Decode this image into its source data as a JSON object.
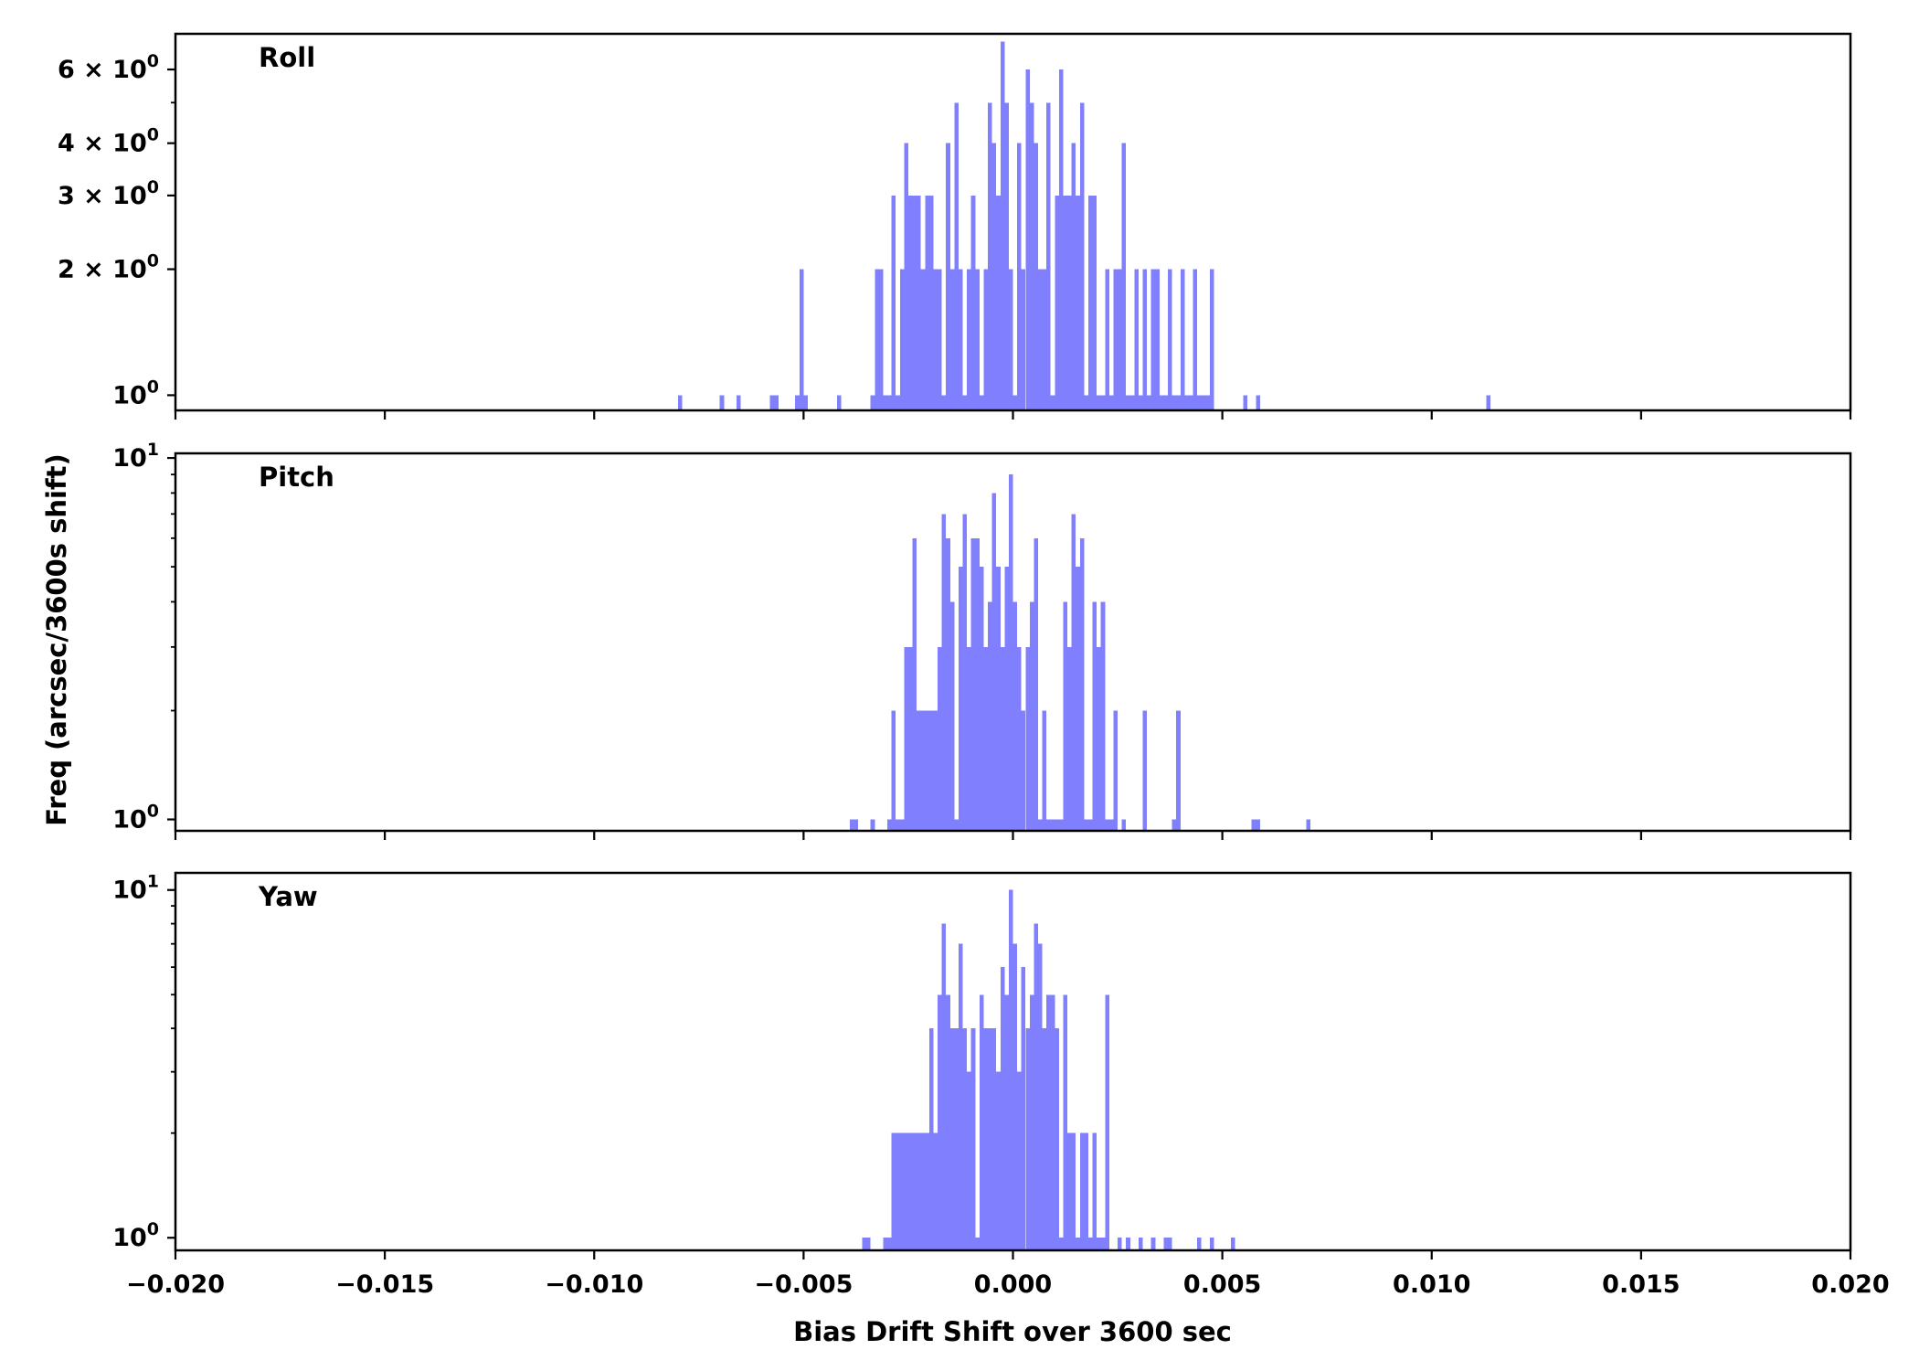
{
  "chart_data": [
    {
      "type": "bar",
      "panel_label": "Roll",
      "yscale": "log",
      "ylim": [
        0.92,
        7.3
      ],
      "y_ticks": [
        {
          "value": 1,
          "label": "10",
          "exp": "0"
        },
        {
          "value": 2,
          "label": "2 × 10",
          "exp": "0"
        },
        {
          "value": 3,
          "label": "3 × 10",
          "exp": "0"
        },
        {
          "value": 4,
          "label": "4 × 10",
          "exp": "0"
        },
        {
          "value": 6,
          "label": "6 × 10",
          "exp": "0"
        }
      ],
      "y_minor": [
        5
      ],
      "x_tick_labels_shown": false,
      "bars": [
        [
          -0.008,
          1
        ],
        [
          -0.007,
          1
        ],
        [
          -0.0066,
          1
        ],
        [
          -0.0058,
          1
        ],
        [
          -0.0057,
          1
        ],
        [
          -0.0052,
          1
        ],
        [
          -0.0051,
          2
        ],
        [
          -0.005,
          1
        ],
        [
          -0.0042,
          1
        ],
        [
          -0.0034,
          1
        ],
        [
          -0.0033,
          2
        ],
        [
          -0.0032,
          2
        ],
        [
          -0.0031,
          1
        ],
        [
          -0.003,
          1
        ],
        [
          -0.0029,
          3
        ],
        [
          -0.0028,
          1
        ],
        [
          -0.0027,
          2
        ],
        [
          -0.0026,
          4
        ],
        [
          -0.0025,
          3
        ],
        [
          -0.0024,
          3
        ],
        [
          -0.0023,
          3
        ],
        [
          -0.0022,
          2
        ],
        [
          -0.0021,
          3
        ],
        [
          -0.002,
          3
        ],
        [
          -0.0019,
          2
        ],
        [
          -0.0018,
          2
        ],
        [
          -0.0017,
          1
        ],
        [
          -0.0016,
          4
        ],
        [
          -0.0015,
          2
        ],
        [
          -0.0014,
          5
        ],
        [
          -0.0013,
          2
        ],
        [
          -0.0012,
          1
        ],
        [
          -0.0011,
          2
        ],
        [
          -0.001,
          3
        ],
        [
          -0.0009,
          2
        ],
        [
          -0.0008,
          1
        ],
        [
          -0.0007,
          2
        ],
        [
          -0.0006,
          5
        ],
        [
          -0.0005,
          4
        ],
        [
          -0.0004,
          3
        ],
        [
          -0.0003,
          7
        ],
        [
          -0.0002,
          5
        ],
        [
          -0.0001,
          2
        ],
        [
          0.0,
          1
        ],
        [
          0.0001,
          4
        ],
        [
          0.0002,
          2
        ],
        [
          0.0003,
          6
        ],
        [
          0.0004,
          5
        ],
        [
          0.0005,
          4
        ],
        [
          0.0006,
          2
        ],
        [
          0.0007,
          2
        ],
        [
          0.0008,
          5
        ],
        [
          0.0009,
          1
        ],
        [
          0.001,
          3
        ],
        [
          0.0011,
          6
        ],
        [
          0.0012,
          3
        ],
        [
          0.0013,
          3
        ],
        [
          0.0014,
          4
        ],
        [
          0.0015,
          3
        ],
        [
          0.0016,
          5
        ],
        [
          0.0017,
          1
        ],
        [
          0.0018,
          3
        ],
        [
          0.0019,
          3
        ],
        [
          0.002,
          1
        ],
        [
          0.0021,
          1
        ],
        [
          0.0022,
          2
        ],
        [
          0.0023,
          1
        ],
        [
          0.0024,
          2
        ],
        [
          0.0025,
          2
        ],
        [
          0.0026,
          4
        ],
        [
          0.0027,
          1
        ],
        [
          0.0028,
          1
        ],
        [
          0.0029,
          2
        ],
        [
          0.003,
          1
        ],
        [
          0.0031,
          2
        ],
        [
          0.0032,
          1
        ],
        [
          0.0033,
          2
        ],
        [
          0.0034,
          2
        ],
        [
          0.0035,
          1
        ],
        [
          0.0036,
          1
        ],
        [
          0.0037,
          2
        ],
        [
          0.0038,
          1
        ],
        [
          0.0039,
          1
        ],
        [
          0.004,
          2
        ],
        [
          0.0041,
          1
        ],
        [
          0.0042,
          1
        ],
        [
          0.0043,
          2
        ],
        [
          0.0044,
          1
        ],
        [
          0.0045,
          1
        ],
        [
          0.0046,
          1
        ],
        [
          0.0047,
          2
        ],
        [
          0.0055,
          1
        ],
        [
          0.0058,
          1
        ],
        [
          0.0113,
          1
        ]
      ]
    },
    {
      "type": "bar",
      "panel_label": "Pitch",
      "yscale": "log",
      "ylim": [
        0.93,
        10.3
      ],
      "y_ticks": [
        {
          "value": 1,
          "label": "10",
          "exp": "0"
        },
        {
          "value": 10,
          "label": "10",
          "exp": "1"
        }
      ],
      "y_minor": [
        2,
        3,
        4,
        5,
        6,
        7,
        8,
        9
      ],
      "x_tick_labels_shown": false,
      "bars": [
        [
          -0.0039,
          1
        ],
        [
          -0.0038,
          1
        ],
        [
          -0.0034,
          1
        ],
        [
          -0.003,
          1
        ],
        [
          -0.0029,
          2
        ],
        [
          -0.0028,
          1
        ],
        [
          -0.0027,
          1
        ],
        [
          -0.0026,
          3
        ],
        [
          -0.0025,
          3
        ],
        [
          -0.0024,
          6
        ],
        [
          -0.0023,
          2
        ],
        [
          -0.0022,
          2
        ],
        [
          -0.0021,
          2
        ],
        [
          -0.002,
          2
        ],
        [
          -0.0019,
          2
        ],
        [
          -0.0018,
          3
        ],
        [
          -0.0017,
          7
        ],
        [
          -0.0016,
          6
        ],
        [
          -0.0015,
          4
        ],
        [
          -0.0014,
          1
        ],
        [
          -0.0013,
          5
        ],
        [
          -0.0012,
          7
        ],
        [
          -0.0011,
          3
        ],
        [
          -0.001,
          6
        ],
        [
          -0.0009,
          6
        ],
        [
          -0.0008,
          5
        ],
        [
          -0.0007,
          3
        ],
        [
          -0.0006,
          4
        ],
        [
          -0.0005,
          8
        ],
        [
          -0.0004,
          5
        ],
        [
          -0.0003,
          3
        ],
        [
          -0.0002,
          5
        ],
        [
          -0.0001,
          9
        ],
        [
          0.0,
          4
        ],
        [
          0.0001,
          3
        ],
        [
          0.0002,
          2
        ],
        [
          0.0003,
          3
        ],
        [
          0.0004,
          4
        ],
        [
          0.0005,
          6
        ],
        [
          0.0006,
          1
        ],
        [
          0.0007,
          2
        ],
        [
          0.0008,
          1
        ],
        [
          0.0009,
          1
        ],
        [
          0.001,
          1
        ],
        [
          0.0011,
          1
        ],
        [
          0.0012,
          4
        ],
        [
          0.0013,
          3
        ],
        [
          0.0014,
          7
        ],
        [
          0.0015,
          5
        ],
        [
          0.0016,
          6
        ],
        [
          0.0017,
          1
        ],
        [
          0.0018,
          1
        ],
        [
          0.0019,
          4
        ],
        [
          0.002,
          3
        ],
        [
          0.0021,
          4
        ],
        [
          0.0022,
          1
        ],
        [
          0.0023,
          1
        ],
        [
          0.0024,
          2
        ],
        [
          0.0026,
          1
        ],
        [
          0.0031,
          2
        ],
        [
          0.0038,
          1
        ],
        [
          0.0039,
          2
        ],
        [
          0.0057,
          1
        ],
        [
          0.0058,
          1
        ],
        [
          0.007,
          1
        ]
      ]
    },
    {
      "type": "bar",
      "panel_label": "Yaw",
      "yscale": "log",
      "ylim": [
        0.92,
        11.2
      ],
      "y_ticks": [
        {
          "value": 1,
          "label": "10",
          "exp": "0"
        },
        {
          "value": 10,
          "label": "10",
          "exp": "1"
        }
      ],
      "y_minor": [
        2,
        3,
        4,
        5,
        6,
        7,
        8,
        9
      ],
      "x_tick_labels_shown": true,
      "bars": [
        [
          -0.0036,
          1
        ],
        [
          -0.0035,
          1
        ],
        [
          -0.0031,
          1
        ],
        [
          -0.003,
          1
        ],
        [
          -0.0029,
          2
        ],
        [
          -0.0028,
          2
        ],
        [
          -0.0027,
          2
        ],
        [
          -0.0026,
          2
        ],
        [
          -0.0025,
          2
        ],
        [
          -0.0024,
          2
        ],
        [
          -0.0023,
          2
        ],
        [
          -0.0022,
          2
        ],
        [
          -0.0021,
          2
        ],
        [
          -0.002,
          4
        ],
        [
          -0.0019,
          2
        ],
        [
          -0.0018,
          5
        ],
        [
          -0.0017,
          8
        ],
        [
          -0.0016,
          5
        ],
        [
          -0.0015,
          4
        ],
        [
          -0.0014,
          4
        ],
        [
          -0.0013,
          7
        ],
        [
          -0.0012,
          4
        ],
        [
          -0.0011,
          3
        ],
        [
          -0.001,
          4
        ],
        [
          -0.0009,
          1
        ],
        [
          -0.0008,
          5
        ],
        [
          -0.0007,
          4
        ],
        [
          -0.0006,
          4
        ],
        [
          -0.0005,
          4
        ],
        [
          -0.0004,
          3
        ],
        [
          -0.0003,
          6
        ],
        [
          -0.0002,
          5
        ],
        [
          -0.0001,
          10
        ],
        [
          0.0,
          7
        ],
        [
          0.0001,
          3
        ],
        [
          0.0002,
          6
        ],
        [
          0.0003,
          4
        ],
        [
          0.0004,
          5
        ],
        [
          0.0005,
          8
        ],
        [
          0.0006,
          7
        ],
        [
          0.0007,
          4
        ],
        [
          0.0008,
          5
        ],
        [
          0.0009,
          5
        ],
        [
          0.001,
          4
        ],
        [
          0.0011,
          1
        ],
        [
          0.0012,
          5
        ],
        [
          0.0013,
          2
        ],
        [
          0.0014,
          2
        ],
        [
          0.0015,
          1
        ],
        [
          0.0016,
          2
        ],
        [
          0.0017,
          2
        ],
        [
          0.0018,
          1
        ],
        [
          0.0019,
          2
        ],
        [
          0.002,
          1
        ],
        [
          0.0021,
          1
        ],
        [
          0.0022,
          5
        ],
        [
          0.0025,
          1
        ],
        [
          0.0027,
          1
        ],
        [
          0.003,
          1
        ],
        [
          0.0033,
          1
        ],
        [
          0.0036,
          1
        ],
        [
          0.0037,
          1
        ],
        [
          0.0044,
          1
        ],
        [
          0.0047,
          1
        ],
        [
          0.0052,
          1
        ]
      ]
    }
  ],
  "shared": {
    "xlim": [
      -0.02,
      0.02
    ],
    "x_ticks": [
      -0.02,
      -0.015,
      -0.01,
      -0.005,
      0.0,
      0.005,
      0.01,
      0.015,
      0.02
    ],
    "x_tick_labels": [
      "−0.020",
      "−0.015",
      "−0.010",
      "−0.005",
      "0.000",
      "0.005",
      "0.010",
      "0.015",
      "0.020"
    ],
    "xlabel": "Bias Drift Shift over 3600 sec",
    "ylabel": "Freq (arcsec/3600s shift)",
    "bin_width": 0.0001,
    "bar_color": "#8080ff"
  }
}
